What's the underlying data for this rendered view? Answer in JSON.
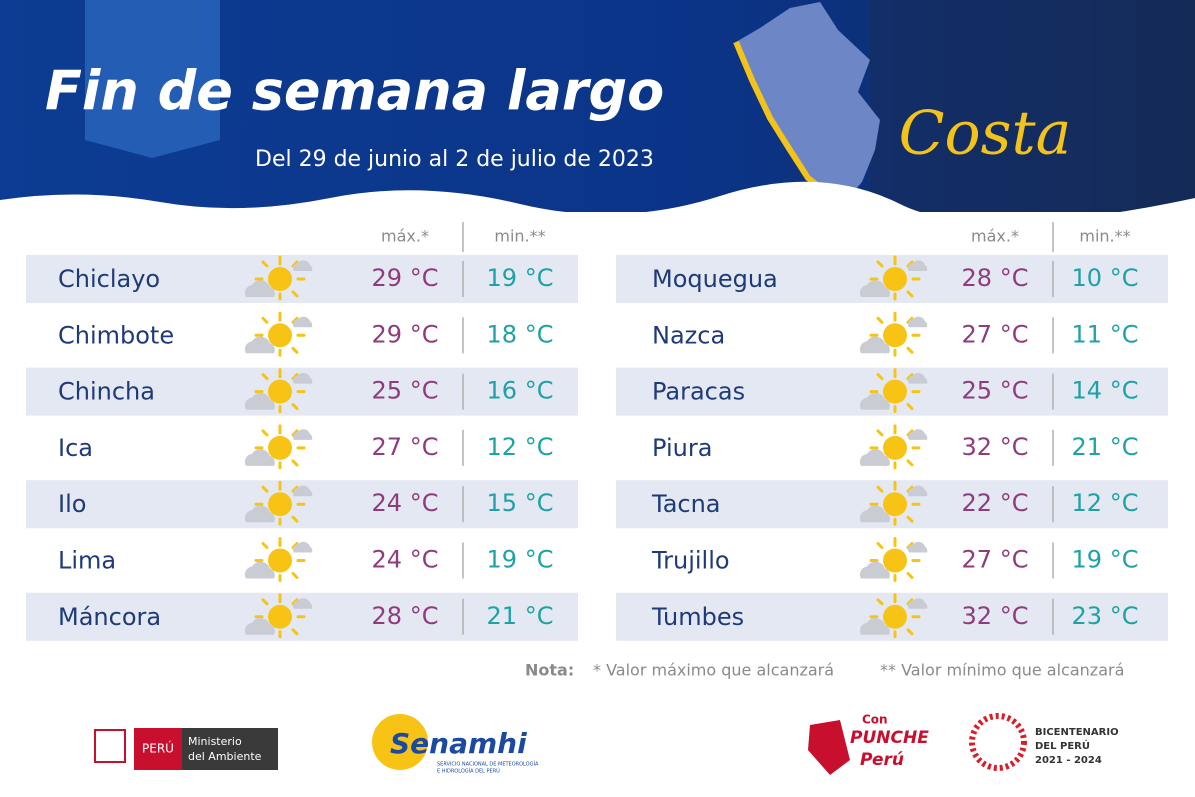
{
  "header": {
    "title": "Fin de semana largo",
    "subtitle": "Del 29 de junio al 2 de julio de 2023",
    "region": "Costa"
  },
  "table": {
    "columns": [
      "máx.*",
      "min.**"
    ],
    "left": [
      [
        "Chiclayo",
        "29 °C",
        "19 °C"
      ],
      [
        "Chimbote",
        "29 °C",
        "18 °C"
      ],
      [
        "Chincha",
        "25 °C",
        "16 °C"
      ],
      [
        "Ica",
        "27 °C",
        "12 °C"
      ],
      [
        "Ilo",
        "24 °C",
        "15 °C"
      ],
      [
        "Lima",
        "24 °C",
        "19 °C"
      ],
      [
        "Máncora",
        "28 °C",
        "21 °C"
      ]
    ],
    "right": [
      [
        "Moquegua",
        "28 °C",
        "10 °C"
      ],
      [
        "Nazca",
        "27 °C",
        "11 °C"
      ],
      [
        "Paracas",
        "25 °C",
        "14 °C"
      ],
      [
        "Piura",
        "32 °C",
        "21 °C"
      ],
      [
        "Tacna",
        "22 °C",
        "12 °C"
      ],
      [
        "Trujillo",
        "27 °C",
        "19 °C"
      ],
      [
        "Tumbes",
        "32 °C",
        "23 °C"
      ]
    ]
  },
  "note": {
    "label": "Nota:",
    "items": [
      "* Valor máximo que alcanzará",
      "** Valor mínimo que alcanzará"
    ]
  },
  "logos": {
    "peru": "PERÚ",
    "ministry": [
      "Ministerio",
      "del Ambiente"
    ],
    "senamhi": "Senamhi",
    "senamhi_sub": [
      "SERVICIO NACIONAL DE METEOROLOGÍA",
      "E HIDROLOGÍA DEL PERÚ"
    ],
    "punche": [
      "Con",
      "PUNCHE",
      "Perú"
    ],
    "bicentenario": [
      "BICENTENARIO",
      "DEL PERÚ",
      "2021 - 2024"
    ]
  }
}
